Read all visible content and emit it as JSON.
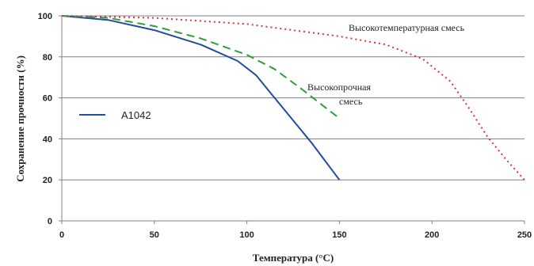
{
  "chart_data": {
    "type": "line",
    "xlabel": "Температура (°С)",
    "ylabel": "Сохранение прочности (%)",
    "xlim": [
      0,
      250
    ],
    "ylim": [
      0,
      100
    ],
    "x_ticks": [
      "0",
      "50",
      "100",
      "150",
      "200",
      "250"
    ],
    "y_ticks": [
      "0",
      "20",
      "40",
      "60",
      "80",
      "100"
    ],
    "grid": "horizontal",
    "legend": "left",
    "series": [
      {
        "name": "A1042",
        "color": "#1f4e9e",
        "style": "solid",
        "points": [
          [
            0,
            100
          ],
          [
            25,
            98
          ],
          [
            50,
            93
          ],
          [
            75,
            86
          ],
          [
            95,
            78
          ],
          [
            105,
            71
          ],
          [
            115,
            60
          ],
          [
            125,
            49
          ],
          [
            135,
            38
          ],
          [
            150,
            20
          ]
        ]
      },
      {
        "name": "Высокопрочная смесь",
        "color": "#2e9e3a",
        "style": "dashed",
        "points": [
          [
            0,
            100
          ],
          [
            25,
            99
          ],
          [
            50,
            95
          ],
          [
            75,
            89
          ],
          [
            100,
            81
          ],
          [
            115,
            74
          ],
          [
            130,
            64
          ],
          [
            140,
            57
          ],
          [
            150,
            50
          ]
        ]
      },
      {
        "name": "Высокотемпературная смесь",
        "color": "#e0303a",
        "style": "dotted",
        "points": [
          [
            0,
            100
          ],
          [
            50,
            99
          ],
          [
            100,
            96
          ],
          [
            150,
            90
          ],
          [
            175,
            86
          ],
          [
            195,
            79
          ],
          [
            210,
            68
          ],
          [
            220,
            55
          ],
          [
            230,
            41
          ],
          [
            240,
            30
          ],
          [
            250,
            20
          ]
        ]
      }
    ],
    "annotations": [
      {
        "text": "Высокотемпературная смесь"
      },
      {
        "text": "Высокопрочная"
      },
      {
        "text": "смесь"
      }
    ],
    "legend_entries": [
      {
        "label": "A1042",
        "color": "#1f4e9e"
      }
    ]
  }
}
